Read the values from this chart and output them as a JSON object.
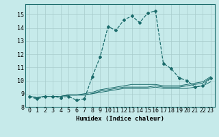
{
  "xlabel": "Humidex (Indice chaleur)",
  "xlim": [
    -0.5,
    23.5
  ],
  "ylim": [
    8.0,
    15.8
  ],
  "yticks": [
    8,
    9,
    10,
    11,
    12,
    13,
    14,
    15
  ],
  "xticks": [
    0,
    1,
    2,
    3,
    4,
    5,
    6,
    7,
    8,
    9,
    10,
    11,
    12,
    13,
    14,
    15,
    16,
    17,
    18,
    19,
    20,
    21,
    22,
    23
  ],
  "bg_color": "#c6eaea",
  "line_color": "#1a6b6b",
  "grid_color": "#a8cccc",
  "series": [
    [
      8.8,
      8.6,
      8.8,
      8.8,
      8.7,
      8.8,
      8.5,
      8.6,
      10.3,
      11.8,
      14.1,
      13.8,
      14.6,
      14.9,
      14.4,
      15.1,
      15.3,
      11.3,
      10.9,
      10.2,
      10.0,
      9.5,
      9.6,
      10.2
    ],
    [
      8.8,
      8.7,
      8.8,
      8.8,
      8.8,
      8.9,
      8.9,
      9.0,
      9.1,
      9.3,
      9.4,
      9.5,
      9.6,
      9.7,
      9.7,
      9.7,
      9.7,
      9.6,
      9.6,
      9.6,
      9.7,
      9.8,
      9.9,
      10.3
    ],
    [
      8.8,
      8.7,
      8.8,
      8.8,
      8.8,
      8.9,
      8.9,
      8.9,
      9.0,
      9.2,
      9.3,
      9.4,
      9.5,
      9.5,
      9.5,
      9.5,
      9.6,
      9.5,
      9.5,
      9.5,
      9.6,
      9.7,
      9.8,
      10.2
    ],
    [
      8.8,
      8.7,
      8.8,
      8.8,
      8.8,
      8.9,
      8.9,
      8.9,
      9.0,
      9.1,
      9.2,
      9.3,
      9.4,
      9.4,
      9.4,
      9.4,
      9.5,
      9.4,
      9.4,
      9.4,
      9.4,
      9.5,
      9.6,
      9.9
    ]
  ],
  "tick_fontsize": 6.0,
  "xlabel_fontsize": 6.5
}
